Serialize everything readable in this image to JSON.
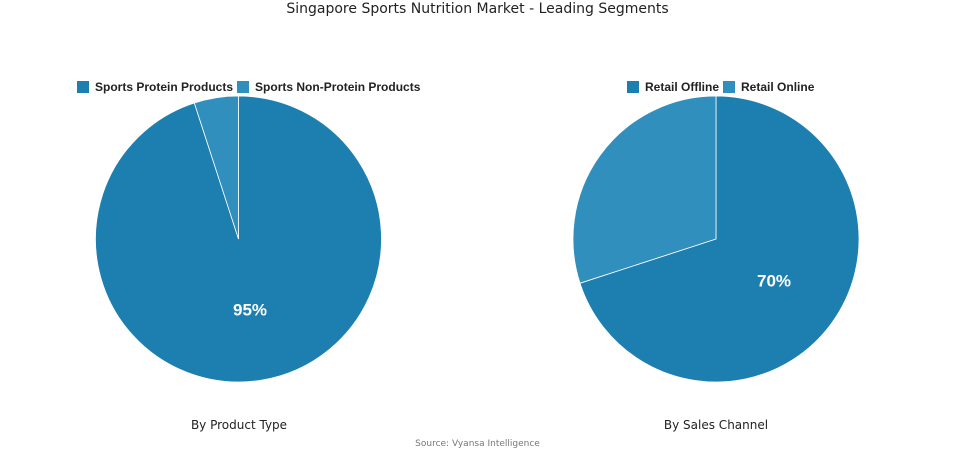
{
  "title": "Singapore Sports Nutrition Market - Leading Segments",
  "source": "Source: Vyansa Intelligence",
  "colors": {
    "primary": "#1c7fb0",
    "secondary": "#318fbd"
  },
  "chart_data": [
    {
      "type": "pie",
      "subtitle": "By Product Type",
      "legend_position": "top",
      "labels": [
        "Sports Protein Products",
        "Sports Non-Protein Products"
      ],
      "values": [
        95,
        5
      ],
      "colors": [
        "#1c7fb0",
        "#318fbd"
      ],
      "data_label": "95%"
    },
    {
      "type": "pie",
      "subtitle": "By Sales Channel",
      "legend_position": "top",
      "labels": [
        "Retail Offline",
        "Retail Online"
      ],
      "values": [
        70,
        30
      ],
      "colors": [
        "#1c7fb0",
        "#318fbd"
      ],
      "data_label": "70%"
    }
  ]
}
